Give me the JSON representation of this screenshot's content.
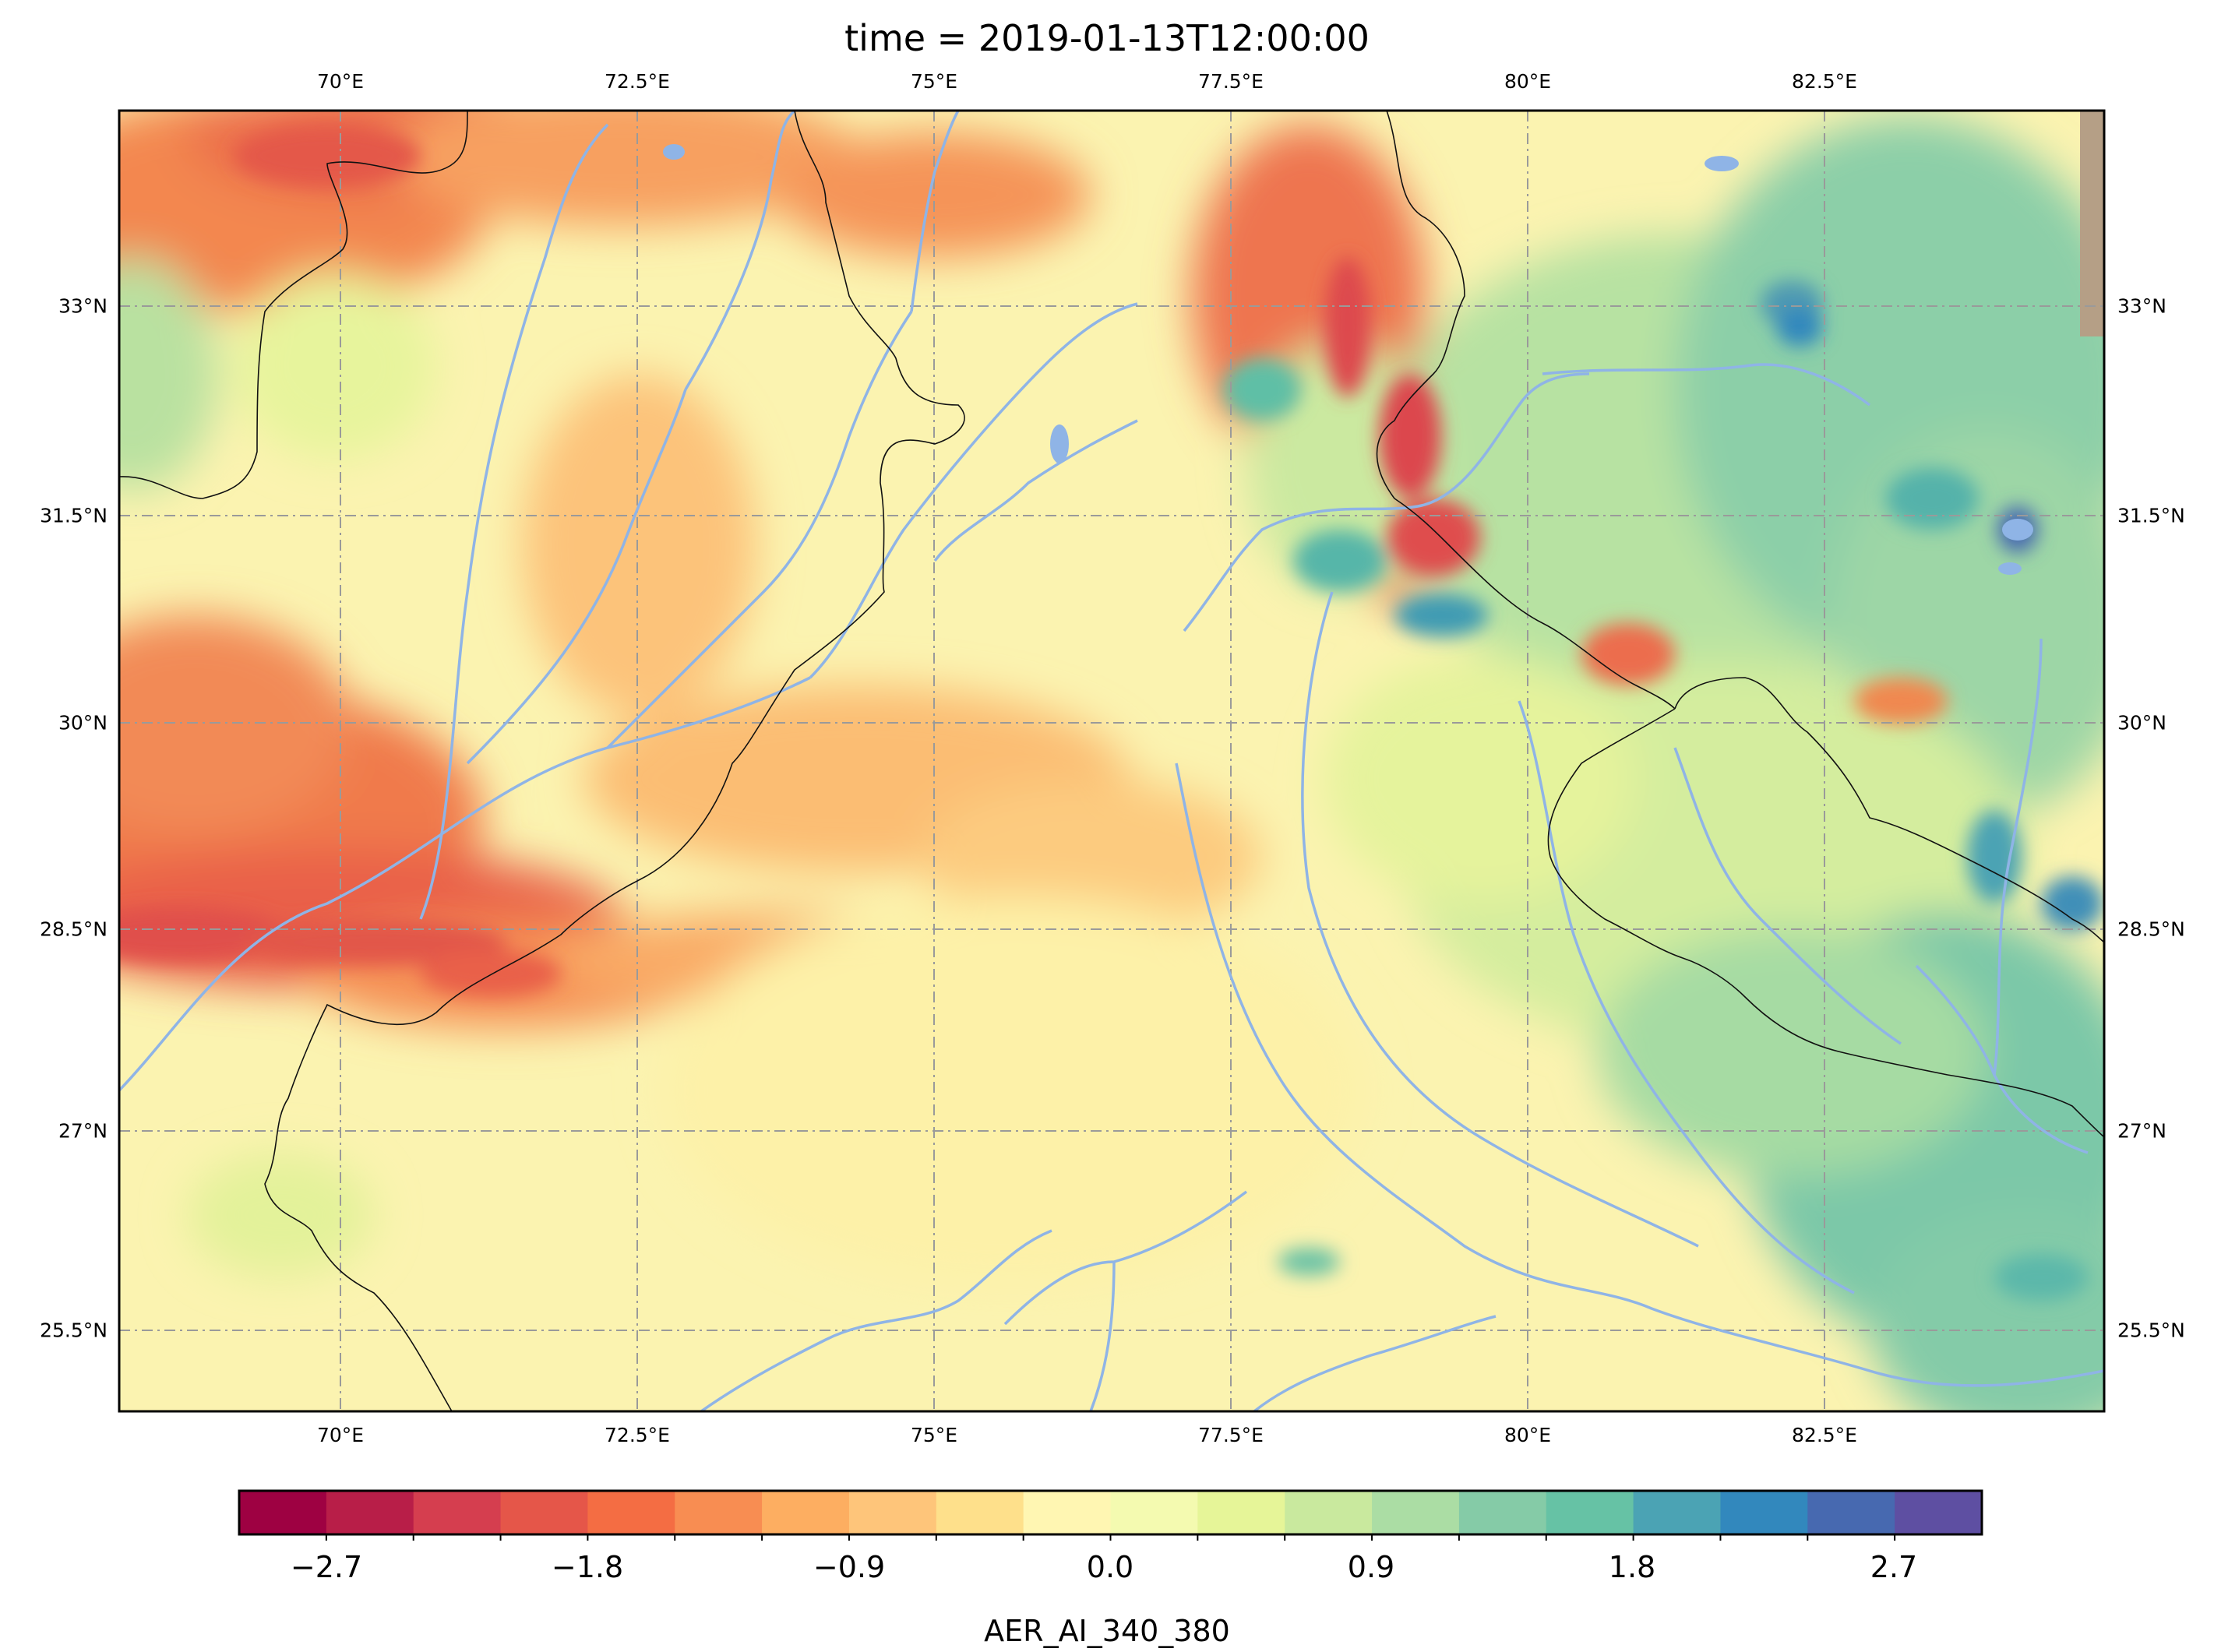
{
  "title": "time = 2019-01-13T12:00:00",
  "lon_ticks": [
    "70°E",
    "72.5°E",
    "75°E",
    "77.5°E",
    "80°E",
    "82.5°E"
  ],
  "lat_ticks": [
    "33°N",
    "31.5°N",
    "30°N",
    "28.5°N",
    "27°N",
    "25.5°N"
  ],
  "colorbar": {
    "label": "AER_AI_340_380",
    "tick_labels": [
      "−2.7",
      "−1.8",
      "−0.9",
      "0.0",
      "0.9",
      "1.8",
      "2.7"
    ],
    "colors": [
      "#9e0142",
      "#b81e48",
      "#d53e4f",
      "#e55649",
      "#f46d43",
      "#f88d52",
      "#fdae61",
      "#fec57a",
      "#fee08b",
      "#fff6b2",
      "#f4fab0",
      "#e6f598",
      "#c9e99e",
      "#abdda4",
      "#85cba7",
      "#66c2a5",
      "#4ba3b4",
      "#3288bd",
      "#4769b0",
      "#5e4fa2"
    ]
  },
  "chart_data": {
    "type": "heatmap",
    "variable": "AER_AI_340_380",
    "title": "time = 2019-01-13T12:00:00",
    "x_axis": {
      "ticks": [
        70,
        72.5,
        75,
        77.5,
        80,
        82.5
      ],
      "unit": "°E",
      "range": [
        68.1,
        84.8
      ]
    },
    "y_axis": {
      "ticks": [
        25.5,
        27,
        28.5,
        30,
        31.5,
        33
      ],
      "unit": "°N",
      "range": [
        24.6,
        34.4
      ]
    },
    "color_range": [
      -3.0,
      3.0
    ],
    "colorbar_ticks": [
      -2.7,
      -1.8,
      -0.9,
      0.0,
      0.9,
      1.8,
      2.7
    ],
    "grid": true,
    "regions": [
      {
        "lon": 69.0,
        "lat": 28.5,
        "value": -2.0
      },
      {
        "lon": 70.0,
        "lat": 29.5,
        "value": -1.8
      },
      {
        "lon": 70.3,
        "lat": 33.8,
        "value": -1.6
      },
      {
        "lon": 72.2,
        "lat": 28.1,
        "value": -1.5
      },
      {
        "lon": 73.5,
        "lat": 34.0,
        "value": -1.4
      },
      {
        "lon": 78.2,
        "lat": 32.3,
        "value": -1.8
      },
      {
        "lon": 79.2,
        "lat": 31.3,
        "value": -1.5
      },
      {
        "lon": 74.5,
        "lat": 29.5,
        "value": -0.6
      },
      {
        "lon": 76.0,
        "lat": 27.0,
        "value": 0.1
      },
      {
        "lon": 79.0,
        "lat": 29.0,
        "value": 0.4
      },
      {
        "lon": 82.0,
        "lat": 32.5,
        "value": 1.3
      },
      {
        "lon": 83.5,
        "lat": 31.5,
        "value": 1.6
      },
      {
        "lon": 83.5,
        "lat": 26.5,
        "value": 1.2
      },
      {
        "lon": 82.0,
        "lat": 27.5,
        "value": 1.0
      }
    ]
  }
}
